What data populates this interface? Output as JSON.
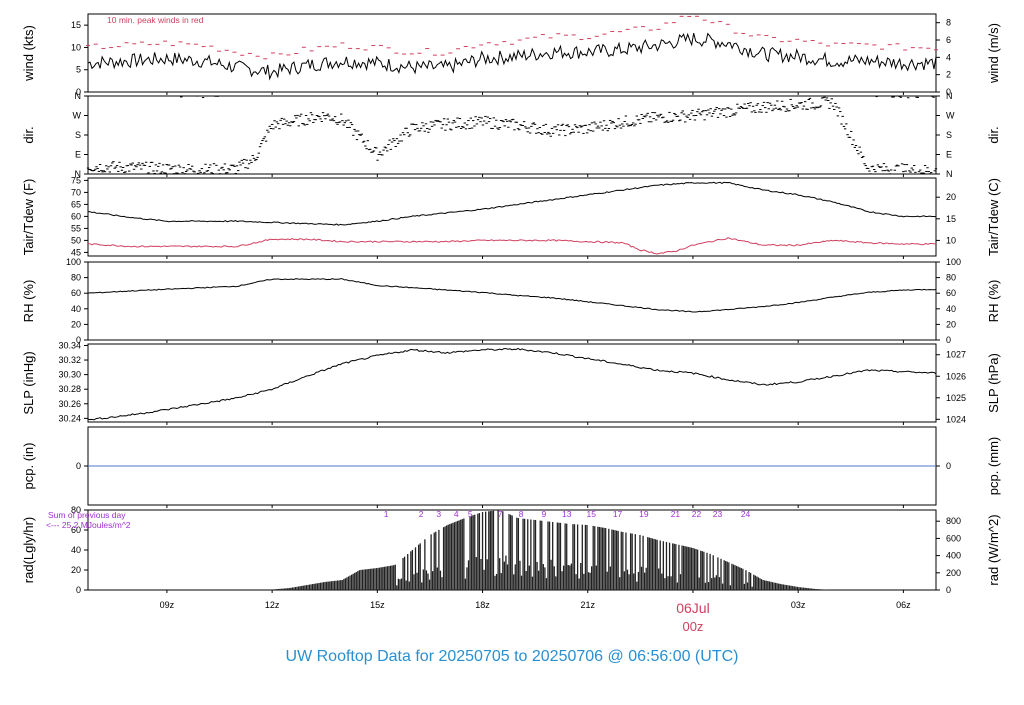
{
  "title": "UW Rooftop Data for 20250705  to  20250706 @ 06:56:00  (UTC)",
  "x_axis": {
    "ticks": [
      "09z",
      "12z",
      "15z",
      "18z",
      "21z",
      "00z",
      "03z",
      "06z"
    ],
    "day_marker": "06Jul",
    "day_marker_time": "00z",
    "range_hours": [
      6.75,
      30.93
    ]
  },
  "colors": {
    "title": "#2a8fd0",
    "peak": "#d04060",
    "dew": "#d04060",
    "precip": "#4a78c8",
    "rad_note": "#a030d0",
    "line": "#000000",
    "day_marker": "#d04060"
  },
  "chart_data": [
    {
      "type": "line",
      "id": "wind",
      "ylabel_left": "wind (kts)",
      "ylabel_right": "wind (m/s)",
      "ylim": [
        0,
        17.5
      ],
      "left_ticks": [
        0,
        5,
        10,
        15
      ],
      "right_ticks": [
        0,
        2,
        4,
        6,
        8
      ],
      "annotation": "10 min. peak winds in red",
      "series": [
        {
          "name": "wind",
          "x": [
            6.75,
            8,
            9,
            10,
            11,
            12,
            13,
            14,
            15,
            16,
            17,
            18,
            19,
            20,
            21,
            22,
            23,
            24,
            25,
            26,
            27,
            28,
            29,
            30,
            30.93
          ],
          "y": [
            6.5,
            7,
            7.5,
            7,
            5.5,
            4.5,
            6,
            7,
            6.5,
            5.5,
            5.5,
            7.5,
            8,
            9,
            9,
            9.5,
            10.5,
            12,
            11,
            8.5,
            8,
            7,
            7,
            6.5,
            6.5
          ]
        },
        {
          "name": "peak",
          "x": [
            6.75,
            8,
            9,
            10,
            11,
            12,
            13,
            14,
            15,
            16,
            17,
            18,
            19,
            20,
            21,
            22,
            23,
            24,
            25,
            26,
            27,
            28,
            29,
            30,
            30.93
          ],
          "y": [
            10,
            10.5,
            11,
            10.5,
            9,
            8,
            9.5,
            10.5,
            10,
            9,
            9,
            11,
            11.5,
            12.5,
            12.5,
            13.5,
            14.5,
            17.5,
            14.5,
            12,
            11.5,
            10.5,
            10.5,
            10,
            10
          ]
        }
      ]
    },
    {
      "type": "scatter",
      "id": "dir",
      "ylabel_left": "dir.",
      "ylabel_right": "dir.",
      "categories": [
        "N",
        "E",
        "S",
        "W",
        "N"
      ],
      "ylim": [
        0,
        360
      ],
      "series": [
        {
          "name": "direction",
          "x": [
            6.75,
            8,
            9,
            10,
            11,
            11.5,
            12,
            12.5,
            13,
            13.5,
            14,
            14.5,
            15,
            15.5,
            16,
            17,
            18,
            19,
            20,
            21,
            22,
            23,
            24,
            25,
            26,
            27,
            28,
            29,
            30,
            30.93
          ],
          "y": [
            35,
            30,
            25,
            20,
            25,
            70,
            225,
            240,
            255,
            270,
            250,
            170,
            90,
            150,
            210,
            230,
            240,
            225,
            200,
            210,
            240,
            260,
            270,
            290,
            310,
            320,
            330,
            25,
            20,
            15
          ]
        }
      ]
    },
    {
      "type": "line",
      "id": "temp",
      "ylabel_left": "Tair/Tdew (F)",
      "ylabel_right": "Tair/Tdew (C)",
      "ylim": [
        43.5,
        76
      ],
      "left_ticks": [
        45,
        50,
        55,
        60,
        65,
        70,
        75
      ],
      "right_ticks": [
        10,
        15,
        20
      ],
      "series": [
        {
          "name": "Tair",
          "x": [
            6.75,
            8,
            9,
            10,
            11,
            12,
            13,
            14,
            15,
            16,
            17,
            18,
            19,
            20,
            21,
            22,
            23,
            24,
            25,
            26,
            27,
            28,
            29,
            30,
            30.93
          ],
          "y": [
            62,
            59.5,
            58,
            58,
            58,
            57.5,
            57,
            56.5,
            58,
            60,
            61.5,
            63,
            65,
            67,
            69,
            71,
            73,
            74,
            74,
            71,
            69,
            66,
            62,
            60,
            60
          ]
        },
        {
          "name": "Tdew",
          "x": [
            6.75,
            8,
            9,
            10,
            11,
            12,
            13,
            14,
            15,
            16,
            17,
            18,
            19,
            20,
            21,
            22,
            22.5,
            23,
            23.5,
            24,
            25,
            26,
            27,
            28,
            29,
            30,
            30.93
          ],
          "y": [
            48.5,
            47.5,
            47.5,
            47.5,
            47.5,
            50.5,
            50.5,
            49.5,
            49.5,
            49.5,
            49.5,
            50,
            50,
            50,
            49.5,
            49,
            46,
            44.5,
            45.5,
            48,
            51,
            48,
            48,
            50,
            49,
            48.5,
            48.5
          ]
        }
      ]
    },
    {
      "type": "line",
      "id": "rh",
      "ylabel_left": "RH (%)",
      "ylabel_right": "RH (%)",
      "ylim": [
        0,
        100
      ],
      "left_ticks": [
        0,
        20,
        40,
        60,
        80,
        100
      ],
      "right_ticks": [
        0,
        20,
        40,
        60,
        80,
        100
      ],
      "series": [
        {
          "name": "RH",
          "x": [
            6.75,
            8,
            9,
            10,
            11,
            12,
            13,
            14,
            15,
            16,
            17,
            18,
            19,
            20,
            21,
            22,
            23,
            24,
            25,
            26,
            27,
            28,
            29,
            30,
            30.93
          ],
          "y": [
            60,
            63,
            65,
            67,
            69,
            78,
            78,
            78,
            70,
            67,
            64,
            61,
            57,
            54,
            49,
            44,
            39,
            36,
            39,
            43,
            48,
            55,
            61,
            64,
            65
          ]
        }
      ]
    },
    {
      "type": "line",
      "id": "slp",
      "ylabel_left": "SLP (inHg)",
      "ylabel_right": "SLP (hPa)",
      "ylim": [
        30.235,
        30.342
      ],
      "left_ticks": [
        30.24,
        30.26,
        30.28,
        30.3,
        30.32,
        30.34
      ],
      "right_ticks": [
        1024,
        1025,
        1026,
        1027
      ],
      "series": [
        {
          "name": "SLP",
          "x": [
            6.75,
            7.5,
            8,
            9,
            10,
            11,
            12,
            13,
            14,
            15,
            16,
            17,
            18,
            19,
            20,
            21,
            22,
            23,
            24,
            25,
            26,
            27,
            28,
            29,
            30,
            30.93
          ],
          "y": [
            30.238,
            30.242,
            30.245,
            30.252,
            30.26,
            30.268,
            30.28,
            30.298,
            30.315,
            30.326,
            30.334,
            30.33,
            30.334,
            30.335,
            30.33,
            30.322,
            30.314,
            30.306,
            30.302,
            30.293,
            30.286,
            30.29,
            30.298,
            30.306,
            30.304,
            30.302
          ]
        }
      ]
    },
    {
      "type": "line",
      "id": "pcp",
      "ylabel_left": "pcp. (in)",
      "ylabel_right": "pcp. (mm)",
      "ylim": [
        -1,
        1
      ],
      "left_ticks": [
        0
      ],
      "right_ticks": [
        0
      ],
      "series": [
        {
          "name": "precip",
          "x": [
            6.75,
            30.93
          ],
          "y": [
            0,
            0
          ]
        }
      ]
    },
    {
      "type": "bar",
      "id": "rad",
      "ylabel_left": "rad(Lgly/hr)",
      "ylabel_right": "rad (W/m^2)",
      "ylim": [
        0,
        80
      ],
      "left_ticks": [
        0,
        20,
        40,
        60,
        80
      ],
      "right_ticks": [
        0,
        200,
        400,
        600,
        800
      ],
      "note_line1": "Sum of previous day",
      "note_line2": "<--- 25.2 MJoules/m^2",
      "hour_labels": [
        "1",
        "2",
        "3",
        "4",
        "5",
        "7",
        "8",
        "9",
        "13",
        "15",
        "17",
        "19",
        "21",
        "22",
        "23",
        "24"
      ],
      "hour_label_x": [
        15.25,
        16.25,
        16.75,
        17.25,
        17.65,
        18.5,
        19.1,
        19.75,
        20.4,
        21.1,
        21.85,
        22.6,
        23.5,
        24.1,
        24.7,
        25.5
      ],
      "series": [
        {
          "name": "radiation",
          "x": [
            12,
            12.5,
            13,
            13.5,
            14,
            14.5,
            15,
            15.5,
            16,
            16.5,
            17,
            17.5,
            18,
            18.5,
            19,
            19.5,
            20,
            20.5,
            21,
            21.5,
            22,
            22.5,
            23,
            23.5,
            24,
            24.5,
            25,
            25.5,
            26,
            26.5,
            27,
            27.5,
            28
          ],
          "y": [
            0.5,
            2,
            5,
            8,
            10,
            20,
            22,
            25,
            40,
            55,
            65,
            72,
            78,
            80,
            72,
            70,
            68,
            66,
            65,
            62,
            58,
            55,
            50,
            46,
            42,
            36,
            28,
            20,
            10,
            6,
            3,
            1,
            0
          ]
        }
      ]
    }
  ]
}
